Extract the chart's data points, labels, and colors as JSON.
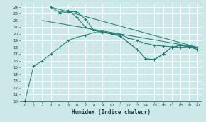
{
  "xlabel": "Humidex (Indice chaleur)",
  "bg_color": "#cce8e8",
  "line_color": "#1e7a6e",
  "grid_color": "#ffffff",
  "xlim": [
    -0.5,
    20.5
  ],
  "ylim": [
    10,
    24.5
  ],
  "xticks": [
    0,
    1,
    2,
    3,
    4,
    5,
    6,
    7,
    8,
    9,
    10,
    11,
    12,
    13,
    14,
    15,
    16,
    17,
    18,
    19,
    20
  ],
  "yticks": [
    10,
    11,
    12,
    13,
    14,
    15,
    16,
    17,
    18,
    19,
    20,
    21,
    22,
    23,
    24
  ],
  "line1_x": [
    3,
    20
  ],
  "line1_y": [
    24.0,
    18.0
  ],
  "line2_x": [
    2,
    20
  ],
  "line2_y": [
    22.0,
    18.0
  ],
  "series_a_x": [
    3,
    4,
    5,
    6,
    7,
    8,
    9,
    10,
    11,
    12,
    13,
    14,
    15,
    16,
    17,
    18,
    19,
    20
  ],
  "series_a_y": [
    24.0,
    23.2,
    23.5,
    22.5,
    21.0,
    20.5,
    20.3,
    20.1,
    19.9,
    19.4,
    19.0,
    18.6,
    18.3,
    18.2,
    18.1,
    18.0,
    18.1,
    18.0
  ],
  "series_b_x": [
    4,
    5,
    6,
    7,
    8,
    9,
    10,
    11,
    12,
    13,
    14,
    15,
    16,
    17,
    18,
    19,
    20
  ],
  "series_b_y": [
    23.0,
    23.3,
    23.3,
    22.2,
    20.5,
    20.3,
    20.1,
    19.7,
    18.7,
    17.7,
    16.3,
    16.2,
    17.0,
    18.0,
    18.3,
    18.1,
    17.7
  ],
  "series_c_x": [
    0,
    1,
    2,
    3,
    4,
    5,
    6,
    7,
    8,
    9,
    10,
    11,
    12,
    13,
    14,
    15,
    16,
    17,
    18,
    19,
    20
  ],
  "series_c_y": [
    10.0,
    15.2,
    16.0,
    17.0,
    18.0,
    19.0,
    19.5,
    19.8,
    20.2,
    20.2,
    20.0,
    19.7,
    18.7,
    17.7,
    16.3,
    16.2,
    17.0,
    18.0,
    18.3,
    18.1,
    17.7
  ]
}
